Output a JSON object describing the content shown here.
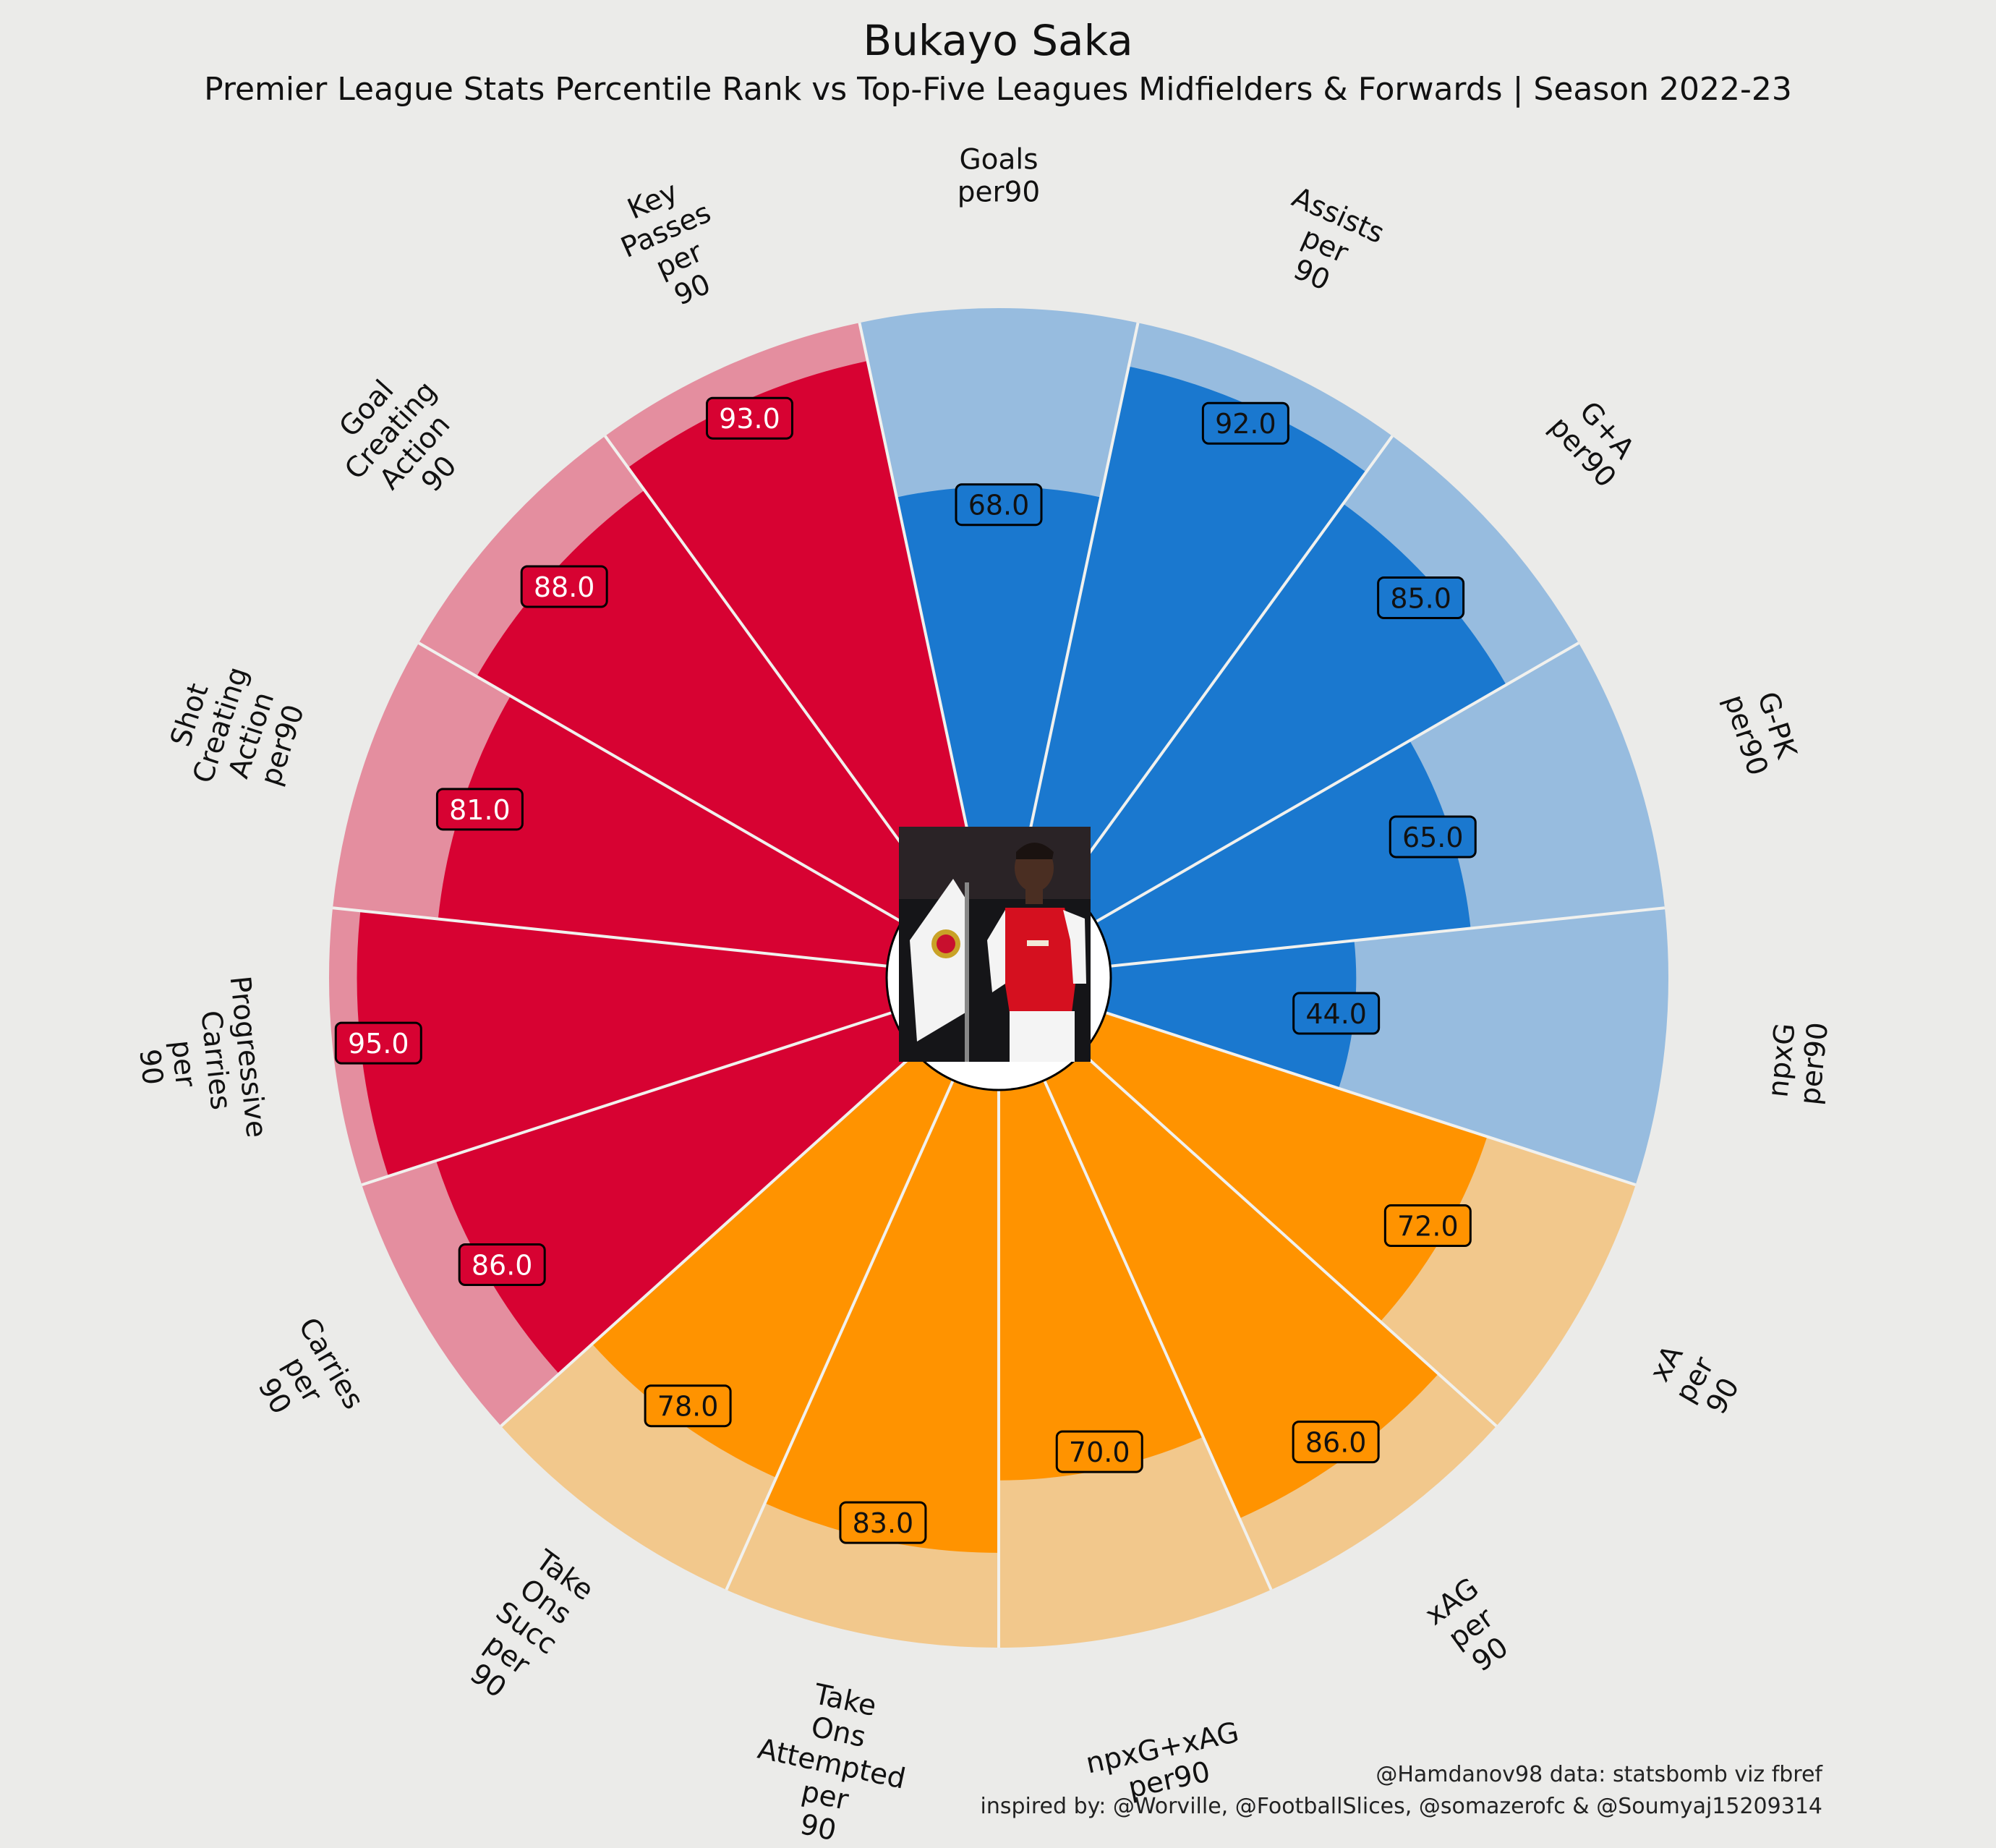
{
  "title": "Bukayo Saka",
  "subtitle": "Premier League Stats Percentile Rank vs Top-Five Leagues Midfielders & Forwards | Season 2022-23",
  "credits": {
    "line1": "@Hamdanov98 data: statsbomb viz fbref",
    "line2": "inspired by: @Worville, @FootballSlices, @somazerofc & @Soumyaj15209314"
  },
  "colors": {
    "background": "#ebebe9",
    "attacking": "#1a78cf",
    "attacking_bg": "#97bcdf",
    "possession": "#ff9300",
    "possession_bg": "#f2c88c",
    "creation": "#d70232",
    "creation_bg": "#e48e9f",
    "divider": "#f1f1ee"
  },
  "player_photo": "player-photo",
  "chart_data": {
    "type": "pizza",
    "range": [
      0,
      100
    ],
    "params": [
      {
        "label": "Goals\nper90",
        "value": 68.0,
        "group": "attacking"
      },
      {
        "label": "Assists\nper\n90",
        "value": 92.0,
        "group": "attacking"
      },
      {
        "label": "G+A\nper90",
        "value": 85.0,
        "group": "attacking"
      },
      {
        "label": "G-PK\nper90",
        "value": 65.0,
        "group": "attacking"
      },
      {
        "label": "npxG\nper90",
        "value": 44.0,
        "group": "attacking"
      },
      {
        "label": "xA\nper\n90",
        "value": 72.0,
        "group": "possession"
      },
      {
        "label": "xAG\nper\n90",
        "value": 86.0,
        "group": "possession"
      },
      {
        "label": "npxG+xAG\nper90",
        "value": 70.0,
        "group": "possession"
      },
      {
        "label": "Take\nOns\nAttempted\nper\n90",
        "value": 83.0,
        "group": "possession"
      },
      {
        "label": "Take\nOns\nSucc\nper\n90",
        "value": 78.0,
        "group": "possession"
      },
      {
        "label": "Carries\nper\n90",
        "value": 86.0,
        "group": "creation"
      },
      {
        "label": "Progressive\nCarries\nper\n90",
        "value": 95.0,
        "group": "creation"
      },
      {
        "label": "Shot\nCreating\nAction\nper90",
        "value": 81.0,
        "group": "creation"
      },
      {
        "label": "Goal\nCreating\nAction\n90",
        "value": 88.0,
        "group": "creation"
      },
      {
        "label": "Key\nPasses\nper\n90",
        "value": 93.0,
        "group": "creation"
      }
    ]
  }
}
